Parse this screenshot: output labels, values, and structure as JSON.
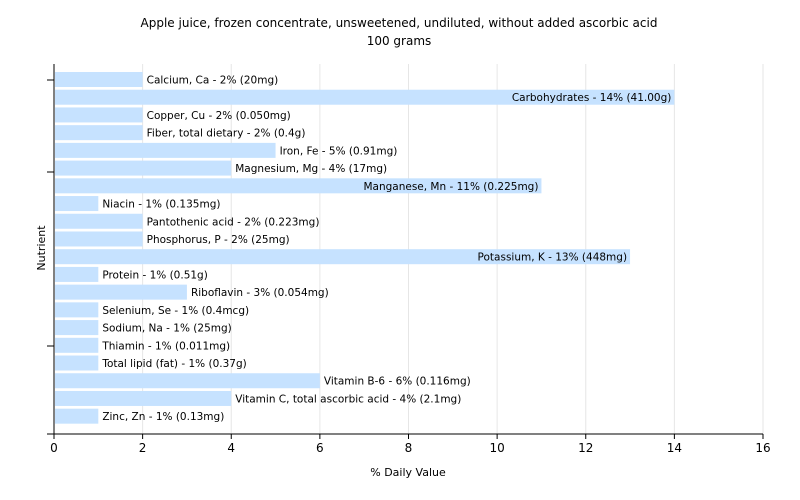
{
  "chart_data": {
    "type": "bar",
    "orientation": "horizontal",
    "title": "Apple juice, frozen concentrate, unsweetened, undiluted, without added ascorbic acid",
    "subtitle": "100 grams",
    "xlabel": "% Daily Value",
    "ylabel": "Nutrient",
    "xlim": [
      0,
      16
    ],
    "xticks": [
      0,
      2,
      4,
      6,
      8,
      10,
      12,
      14,
      16
    ],
    "grid": true,
    "bar_color": "#c6e2ff",
    "categories": [
      "Calcium, Ca",
      "Carbohydrates",
      "Copper, Cu",
      "Fiber, total dietary",
      "Iron, Fe",
      "Magnesium, Mg",
      "Manganese, Mn",
      "Niacin",
      "Pantothenic acid",
      "Phosphorus, P",
      "Potassium, K",
      "Protein",
      "Riboflavin",
      "Selenium, Se",
      "Sodium, Na",
      "Thiamin",
      "Total lipid (fat)",
      "Vitamin B-6",
      "Vitamin C, total ascorbic acid",
      "Zinc, Zn"
    ],
    "values": [
      2,
      14,
      2,
      2,
      5,
      4,
      11,
      1,
      2,
      2,
      13,
      1,
      3,
      1,
      1,
      1,
      1,
      6,
      4,
      1
    ],
    "labels": [
      "Calcium, Ca - 2% (20mg)",
      "Carbohydrates - 14% (41.00g)",
      "Copper, Cu - 2% (0.050mg)",
      "Fiber, total dietary - 2% (0.4g)",
      "Iron, Fe - 5% (0.91mg)",
      "Magnesium, Mg - 4% (17mg)",
      "Manganese, Mn - 11% (0.225mg)",
      "Niacin - 1% (0.135mg)",
      "Pantothenic acid - 2% (0.223mg)",
      "Phosphorus, P - 2% (25mg)",
      "Potassium, K - 13% (448mg)",
      "Protein - 1% (0.51g)",
      "Riboflavin - 3% (0.054mg)",
      "Selenium, Se - 1% (0.4mcg)",
      "Sodium, Na - 1% (25mg)",
      "Thiamin - 1% (0.011mg)",
      "Total lipid (fat) - 1% (0.37g)",
      "Vitamin B-6 - 6% (0.116mg)",
      "Vitamin C, total ascorbic acid - 4% (2.1mg)",
      "Zinc, Zn - 1% (0.13mg)"
    ]
  }
}
